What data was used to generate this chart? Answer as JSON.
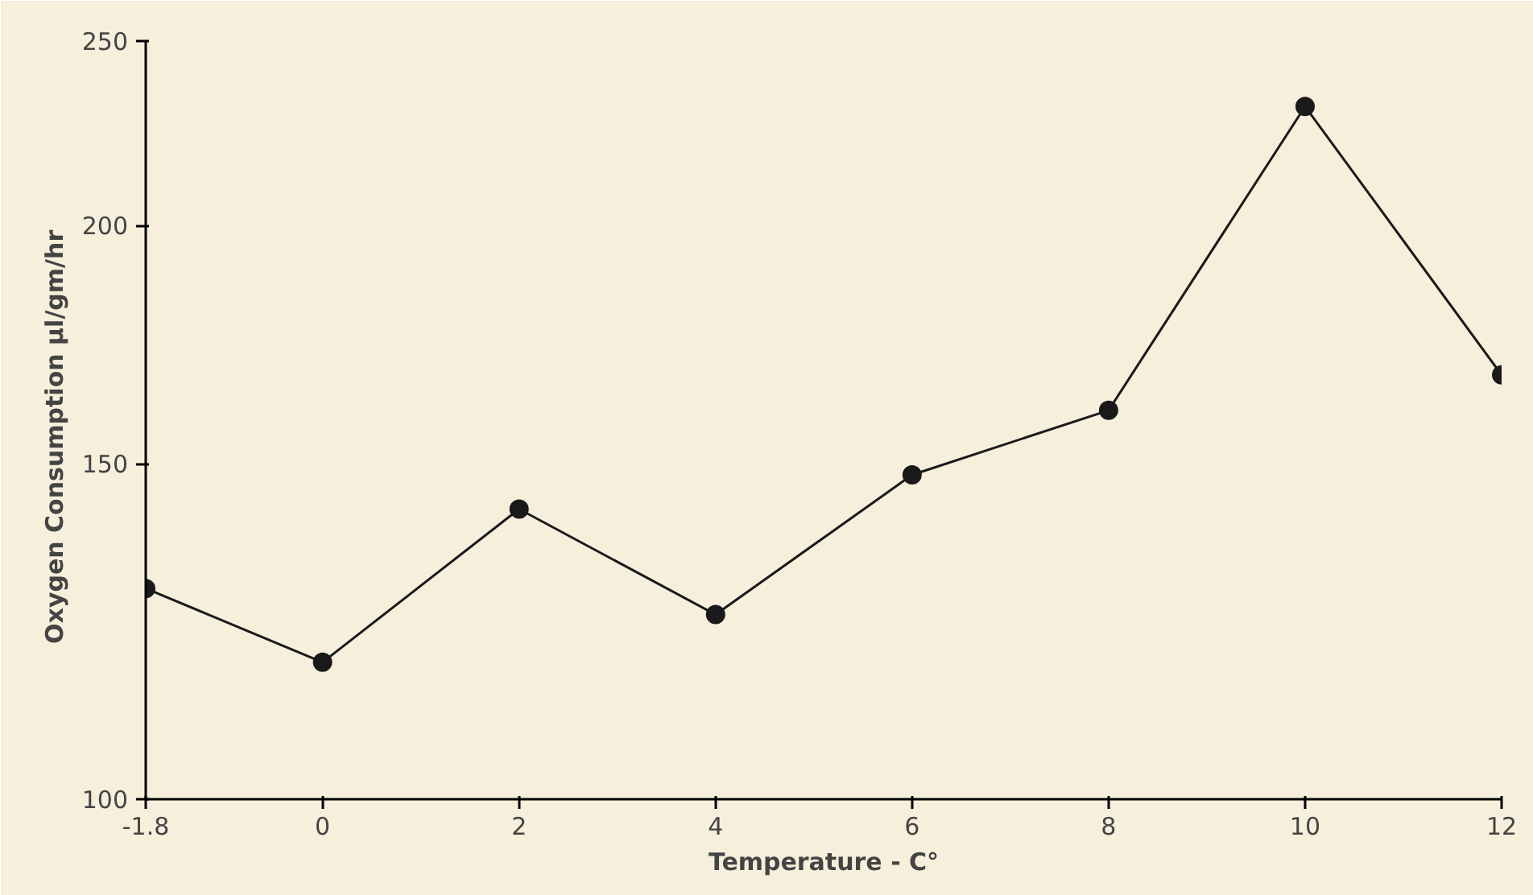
{
  "chart_data": {
    "type": "line",
    "xlabel": "Temperature - C°",
    "ylabel": "Oxygen   Consumption   µl/gm/hr",
    "x": [
      -1.8,
      0,
      2,
      4,
      6,
      8,
      10,
      12
    ],
    "series": [
      {
        "color": "#1a1a1a",
        "values": [
          129,
          118,
          142,
          125,
          148,
          160,
          231,
          167
        ]
      }
    ],
    "xlim": [
      -1.8,
      12
    ],
    "ylim": [
      100,
      250
    ],
    "xticks": [
      -1.8,
      0,
      2,
      4,
      6,
      8,
      10,
      12
    ],
    "yticks": [
      100,
      150,
      200,
      250
    ],
    "log": "y",
    "grid": false,
    "marker": "circle",
    "line_style": "solid"
  }
}
